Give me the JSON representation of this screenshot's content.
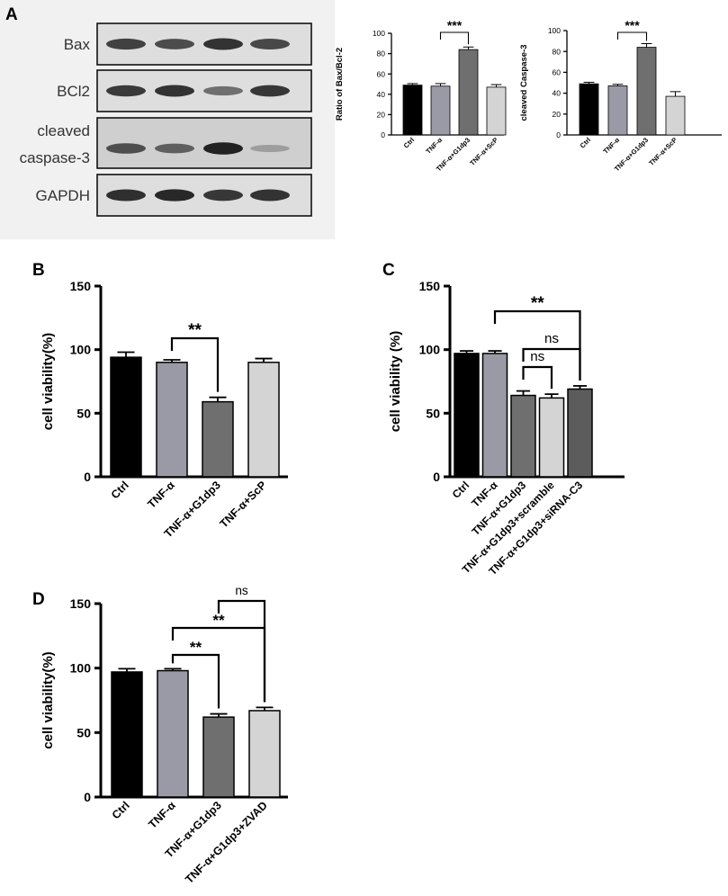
{
  "panels": {
    "A": "A",
    "B": "B",
    "C": "C",
    "D": "D"
  },
  "blot": {
    "rows": [
      {
        "label": "Bax",
        "intensities": [
          0.78,
          0.72,
          0.86,
          0.74
        ]
      },
      {
        "label": "BCl2",
        "intensities": [
          0.82,
          0.86,
          0.52,
          0.84
        ]
      },
      {
        "label_lines": [
          "cleaved",
          "caspase-3"
        ],
        "intensities": [
          0.7,
          0.6,
          0.95,
          0.25
        ]
      },
      {
        "label": "GAPDH",
        "intensities": [
          0.88,
          0.92,
          0.84,
          0.86
        ]
      }
    ]
  },
  "chart_data": [
    {
      "id": "A1",
      "type": "bar",
      "ylabel": "Ratio of Bax/Bcl-2",
      "categories": [
        "Ctrl",
        "TNF-α",
        "TNF-α+G1dp3",
        "TNF-α+ScP"
      ],
      "values": [
        49,
        48,
        84,
        47
      ],
      "errors": [
        1.5,
        2.5,
        2.5,
        2.5
      ],
      "colors": [
        "#000000",
        "#9a9aa6",
        "#6f6f6f",
        "#d4d4d4"
      ],
      "ylim": [
        0,
        100
      ],
      "yticks": [
        0,
        20,
        40,
        60,
        80,
        100
      ],
      "significance": [
        {
          "from": 1,
          "to": 2,
          "label": "***"
        }
      ]
    },
    {
      "id": "A2",
      "type": "bar",
      "ylabel": "cleaved Caspase-3",
      "categories": [
        "Ctrl",
        "TNF-α",
        "TNF-α+G1dp3",
        "TNF-α+ScP"
      ],
      "values": [
        49,
        47,
        84,
        37
      ],
      "errors": [
        1.5,
        1.5,
        3.5,
        4.5
      ],
      "colors": [
        "#000000",
        "#9a9aa6",
        "#6f6f6f",
        "#d4d4d4"
      ],
      "ylim": [
        0,
        100
      ],
      "yticks": [
        0,
        20,
        40,
        60,
        80,
        100
      ],
      "significance": [
        {
          "from": 1,
          "to": 2,
          "label": "***"
        }
      ]
    },
    {
      "id": "B",
      "type": "bar",
      "ylabel": "cell viability(%)",
      "categories": [
        "Ctrl",
        "TNF-α",
        "TNF-α+G1dp3",
        "TNF-α+ScP"
      ],
      "values": [
        94,
        90,
        59,
        90
      ],
      "errors": [
        4,
        2,
        3.5,
        3
      ],
      "colors": [
        "#000000",
        "#9a9aa6",
        "#6f6f6f",
        "#d4d4d4"
      ],
      "ylim": [
        0,
        150
      ],
      "yticks": [
        0,
        50,
        100,
        150
      ],
      "significance": [
        {
          "from": 1,
          "to": 2,
          "label": "**"
        }
      ]
    },
    {
      "id": "C",
      "type": "bar",
      "ylabel": "cell viability (%)",
      "categories": [
        "Ctrl",
        "TNF-α",
        "TNF-α+G1dp3",
        "TNF-α+G1dp3+scramble",
        "TNF-α+G1dp3+siRNA-C3"
      ],
      "values": [
        97,
        97,
        64,
        62,
        69
      ],
      "errors": [
        2,
        2,
        3.5,
        3,
        2.5
      ],
      "colors": [
        "#000000",
        "#9a9aa6",
        "#6f6f6f",
        "#d4d4d4",
        "#5c5c5c"
      ],
      "ylim": [
        0,
        150
      ],
      "yticks": [
        0,
        50,
        100,
        150
      ],
      "significance": [
        {
          "from": 1,
          "to": 4,
          "label": "**"
        },
        {
          "from": 2,
          "to": 4,
          "label": "ns"
        },
        {
          "from": 2,
          "to": 3,
          "label": "ns"
        }
      ]
    },
    {
      "id": "D",
      "type": "bar",
      "ylabel": "cell viability(%)",
      "categories": [
        "Ctrl",
        "TNF-α",
        "TNF-α+G1dp3",
        "TNF-α+G1dp3+ZVAD"
      ],
      "values": [
        97,
        98,
        62,
        67
      ],
      "errors": [
        2.5,
        1.5,
        2.5,
        2.5
      ],
      "colors": [
        "#000000",
        "#9a9aa6",
        "#6f6f6f",
        "#d4d4d4"
      ],
      "ylim": [
        0,
        150
      ],
      "yticks": [
        0,
        50,
        100,
        150
      ],
      "significance": [
        {
          "from": 2,
          "to": 3,
          "label": "ns"
        },
        {
          "from": 1,
          "to": 3,
          "label": "**"
        },
        {
          "from": 1,
          "to": 2,
          "label": "**"
        }
      ]
    }
  ]
}
